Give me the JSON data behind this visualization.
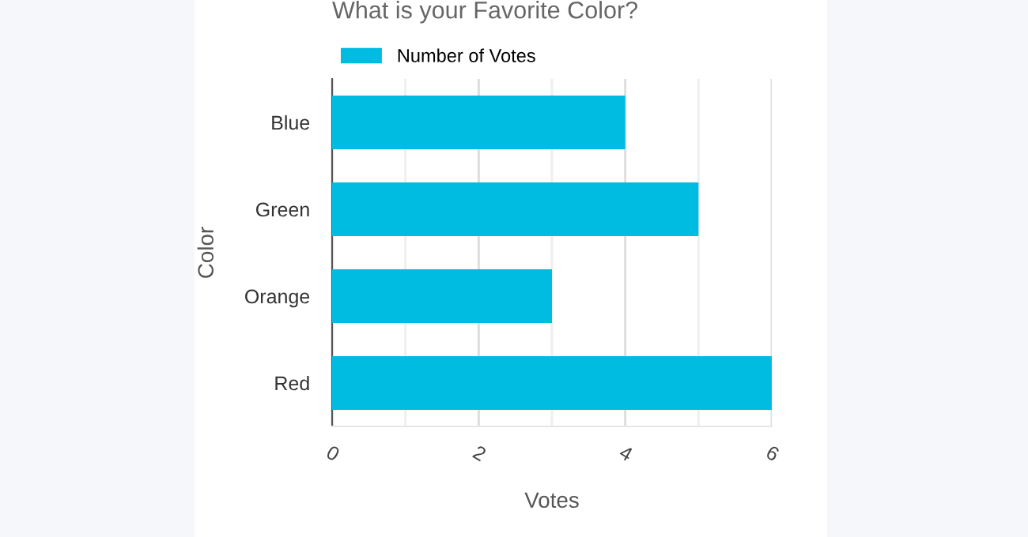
{
  "chart_data": {
    "type": "bar",
    "orientation": "horizontal",
    "title": "What is your Favorite Color?",
    "xlabel": "Votes",
    "ylabel": "Color",
    "categories": [
      "Blue",
      "Green",
      "Orange",
      "Red"
    ],
    "series": [
      {
        "name": "Number of Votes",
        "color": "#00bce0",
        "values": [
          4,
          5,
          3,
          6
        ]
      }
    ],
    "xlim": [
      0,
      6
    ],
    "xticks": [
      0,
      2,
      4,
      6
    ],
    "grid": "x",
    "legend": "top left"
  }
}
